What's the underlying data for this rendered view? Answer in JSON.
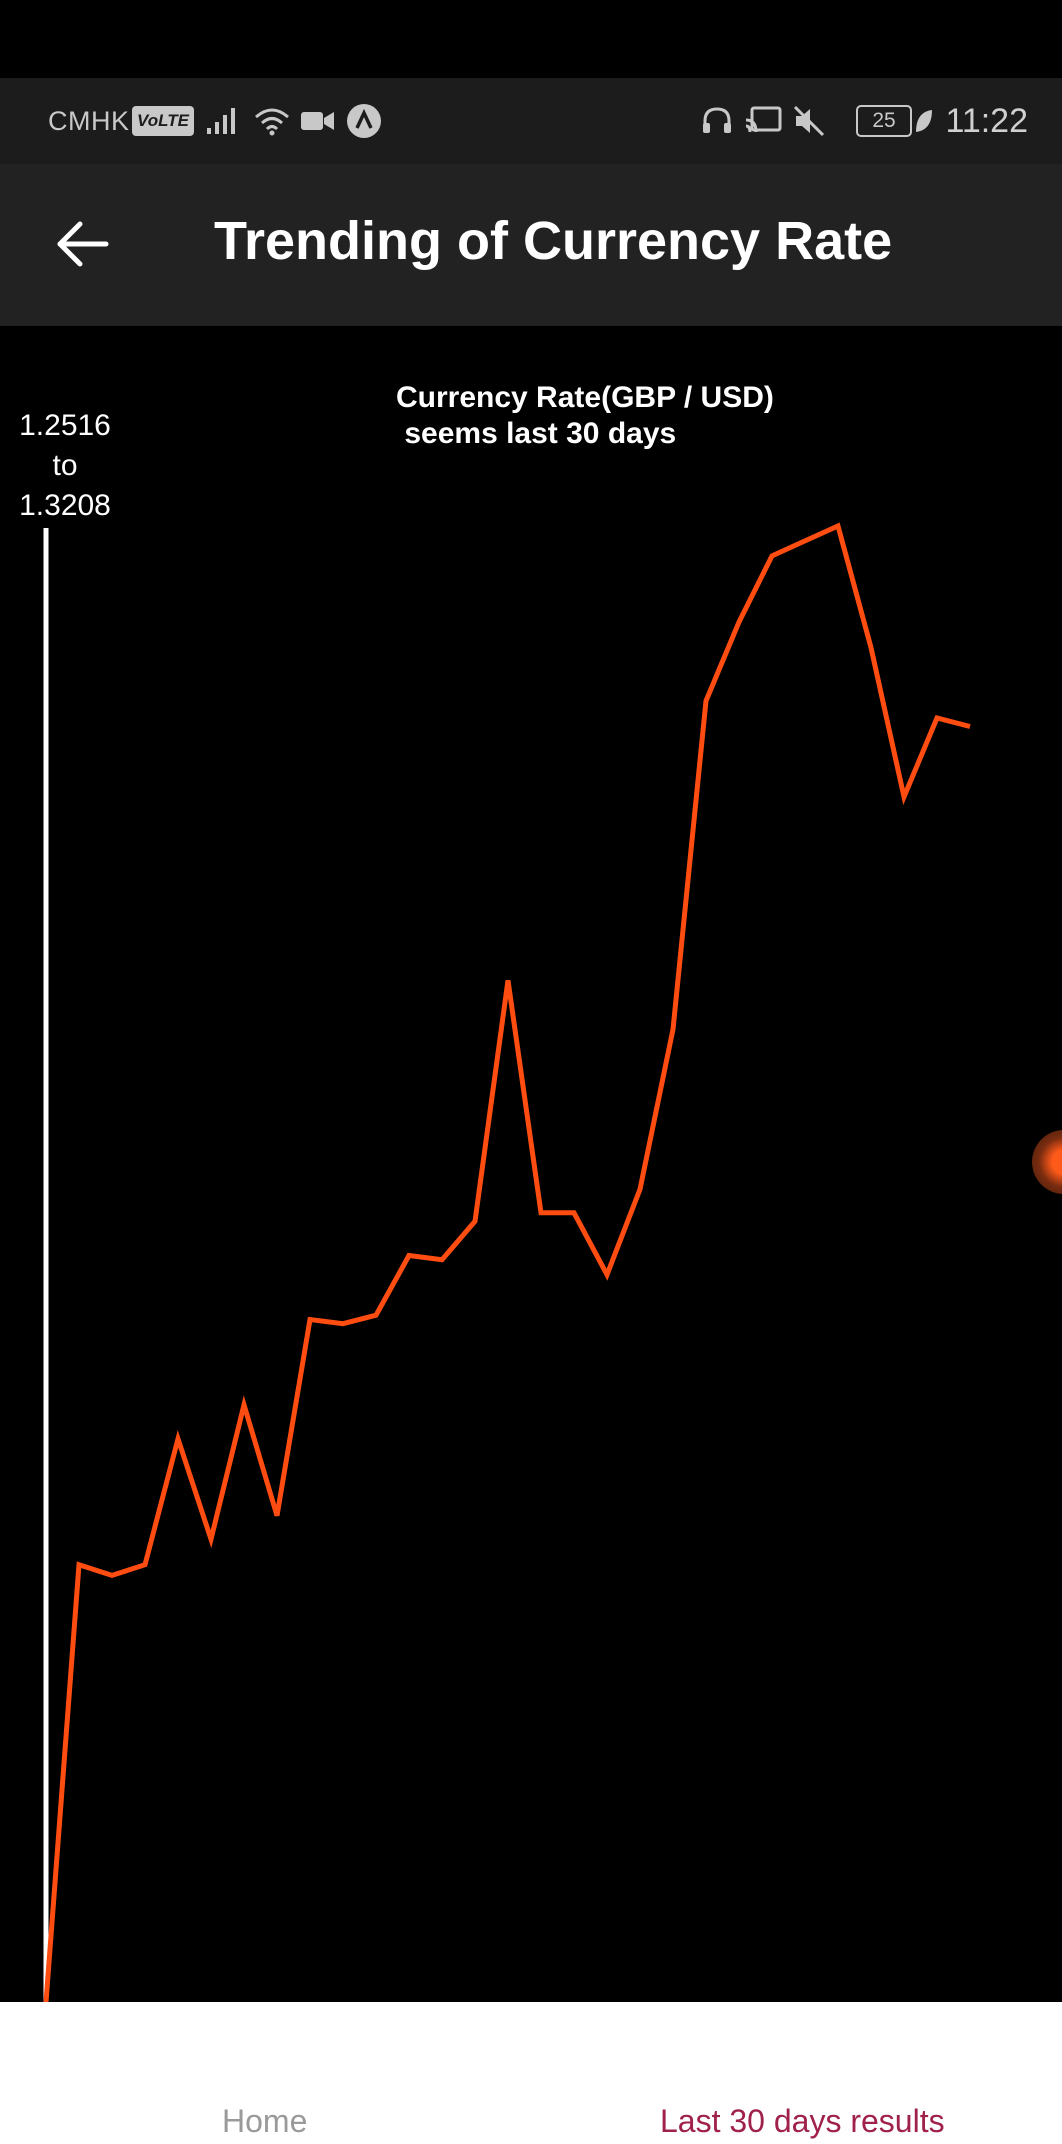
{
  "status_bar": {
    "carrier": "CMHK",
    "volte": "VoLTE",
    "battery": "25",
    "time": "11:22"
  },
  "app_bar": {
    "title": "Trending of Currency Rate",
    "back_icon": "arrow-left-icon"
  },
  "chart": {
    "title": "Currency Rate(GBP / USD)\n seems last 30 days",
    "range_label_lines": [
      "1.2516",
      "to",
      "1.3208"
    ]
  },
  "chart_data": {
    "type": "line",
    "title": "Currency Rate(GBP / USD)\n seems last 30 days",
    "ylim": [
      1.2516,
      1.3208
    ],
    "ylabel": "1.2516 to 1.3208",
    "series": [
      {
        "color": "#ff4d12",
        "values": [
          1.2516,
          1.2721,
          1.2716,
          1.2721,
          1.278,
          1.2733,
          1.2796,
          1.2744,
          1.2836,
          1.2834,
          1.2838,
          1.2866,
          1.2864,
          1.2882,
          1.2995,
          1.2886,
          1.2886,
          1.2857,
          1.2897,
          1.2972,
          1.3126,
          1.3163,
          1.3194,
          1.3201,
          1.3208,
          1.3151,
          1.3081,
          1.3118,
          1.3114
        ]
      }
    ],
    "grid": false,
    "legend": "none"
  },
  "bottom_nav": {
    "home": "Home",
    "last30": "Last 30 days results",
    "active_color": "#a0214a",
    "inactive_color": "#9a9a9a"
  },
  "colors": {
    "line": "#ff4d12",
    "axis": "#ffffff",
    "app_bar": "#222222",
    "status_bar": "#1c1c1c"
  }
}
